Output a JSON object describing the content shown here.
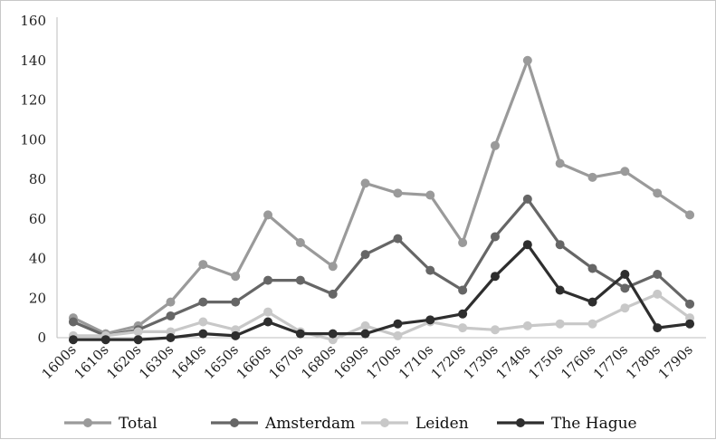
{
  "chart_data": {
    "type": "line",
    "categories": [
      "1600s",
      "1610s",
      "1620s",
      "1630s",
      "1640s",
      "1650s",
      "1660s",
      "1670s",
      "1680s",
      "1690s",
      "1700s",
      "1710s",
      "1720s",
      "1730s",
      "1740s",
      "1750s",
      "1760s",
      "1770s",
      "1780s",
      "1790s"
    ],
    "ylim": [
      0,
      160
    ],
    "yticks": [
      0,
      20,
      40,
      60,
      80,
      100,
      120,
      140,
      160
    ],
    "grid": false,
    "legend_position": "bottom",
    "series": [
      {
        "name": "Total",
        "color": "#9a9a9a",
        "values": [
          10,
          2,
          6,
          18,
          37,
          31,
          62,
          48,
          36,
          78,
          73,
          72,
          48,
          97,
          140,
          88,
          81,
          84,
          73,
          62
        ]
      },
      {
        "name": "Amsterdam",
        "color": "#666666",
        "values": [
          8,
          1,
          4,
          11,
          18,
          18,
          29,
          29,
          22,
          42,
          50,
          34,
          24,
          51,
          70,
          47,
          35,
          25,
          32,
          17
        ]
      },
      {
        "name": "Leiden",
        "color": "#c8c8c8",
        "values": [
          1,
          1,
          3,
          3,
          8,
          4,
          13,
          3,
          -1,
          6,
          1,
          8,
          5,
          4,
          6,
          7,
          7,
          15,
          22,
          10
        ]
      },
      {
        "name": "The Hague",
        "color": "#2e2e2e",
        "values": [
          -1,
          -1,
          -1,
          0,
          2,
          1,
          8,
          2,
          2,
          2,
          7,
          9,
          12,
          31,
          47,
          24,
          18,
          32,
          5,
          7
        ]
      }
    ]
  }
}
